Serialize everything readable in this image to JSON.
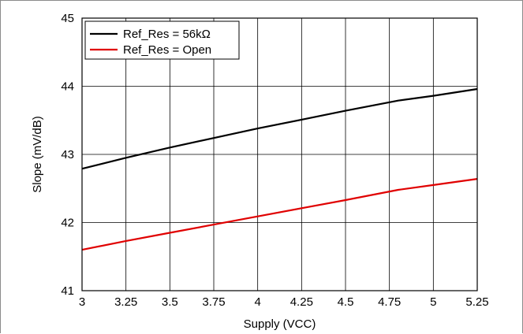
{
  "chart_data": {
    "type": "line",
    "xlabel": "Supply (VCC)",
    "ylabel": "Slope (mV/dB)",
    "xlim": [
      3,
      5.25
    ],
    "ylim": [
      41,
      45
    ],
    "xticks": [
      "3",
      "3.25",
      "3.5",
      "3.75",
      "4",
      "4.25",
      "4.5",
      "4.75",
      "5",
      "5.25"
    ],
    "yticks": [
      "41",
      "42",
      "43",
      "44",
      "45"
    ],
    "grid": true,
    "legend_position": "top-left",
    "series": [
      {
        "name": "Ref_Res = 56kΩ",
        "color": "#000000",
        "x": [
          3,
          3.25,
          3.5,
          3.75,
          4,
          4.25,
          4.5,
          4.8,
          5,
          5.25
        ],
        "y": [
          42.79,
          42.95,
          43.1,
          43.24,
          43.38,
          43.51,
          43.64,
          43.79,
          43.86,
          43.96
        ]
      },
      {
        "name": "Ref_Res = Open",
        "color": "#e00000",
        "x": [
          3,
          3.25,
          3.5,
          3.75,
          4,
          4.25,
          4.5,
          4.8,
          5,
          5.25
        ],
        "y": [
          41.6,
          41.73,
          41.85,
          41.97,
          42.09,
          42.21,
          42.33,
          42.48,
          42.55,
          42.64
        ]
      }
    ]
  }
}
